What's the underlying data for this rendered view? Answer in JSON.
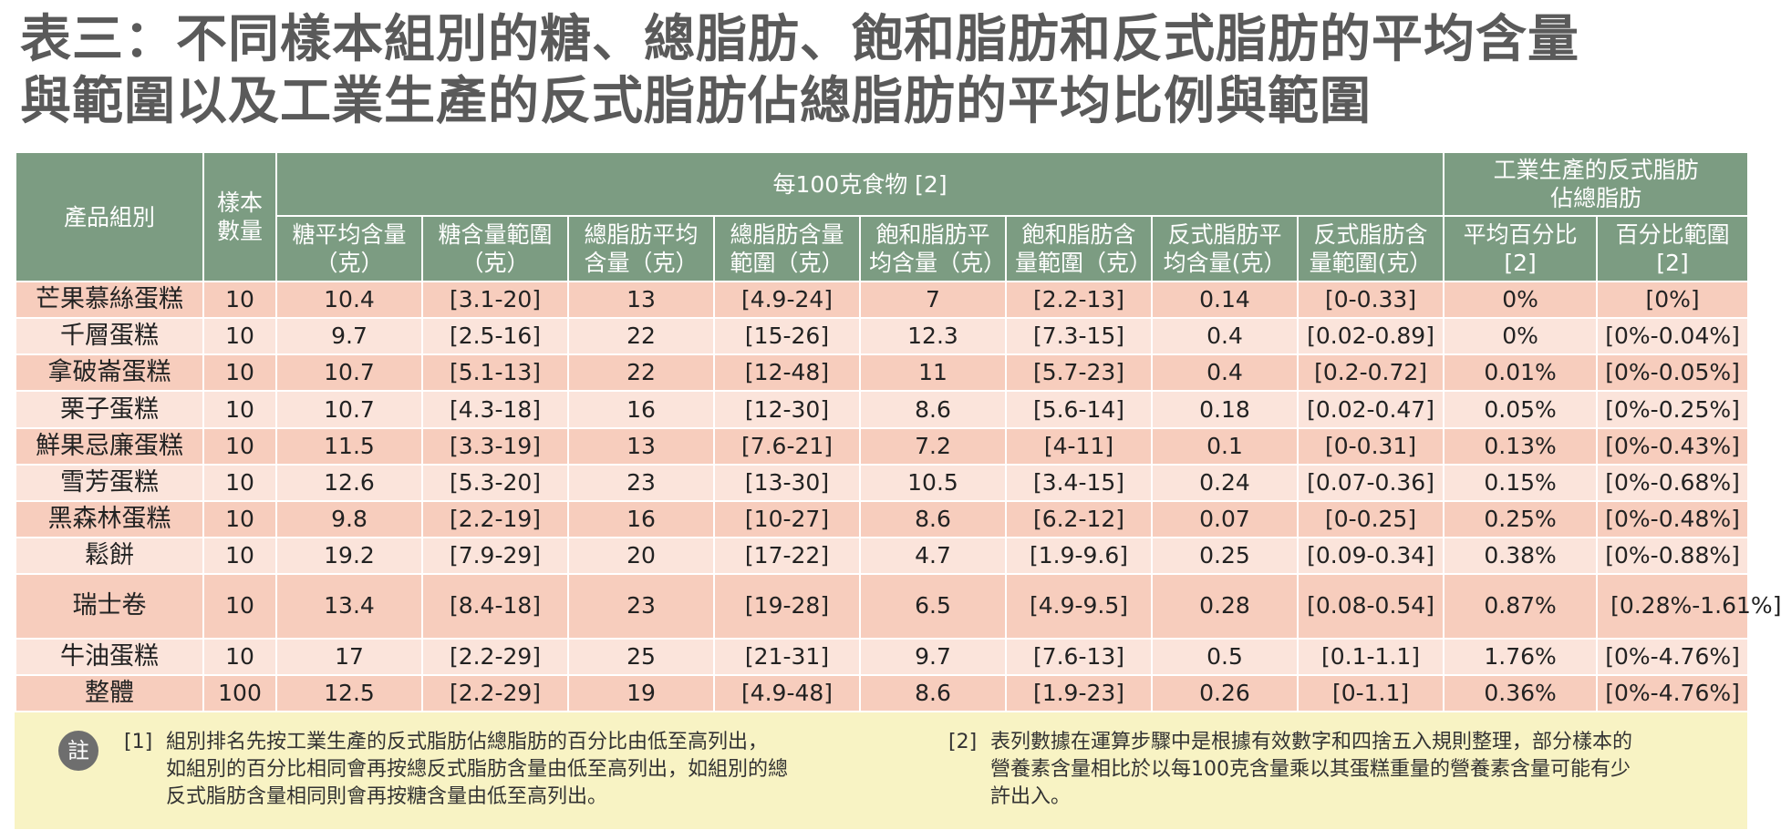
{
  "title_line1": "表三：不同樣本組別的糖、總脂肪、飽和脂肪和反式脂肪的平均含量",
  "title_line2": "與範圍以及工業生產的反式脂肪佔總脂肪的平均比例與範圍",
  "header": {
    "product_group": "產品組別",
    "sample_count": "樣本數量",
    "per100g": "每100克食物 [2]",
    "industrial": "工業生產的反式脂肪佔總脂肪",
    "columns": [
      "糖平均含量（克）",
      "糖含量範圍（克）",
      "總脂肪平均含量（克）",
      "總脂肪含量範圍（克）",
      "飽和脂肪平均含量（克）",
      "飽和脂肪含量範圍（克）",
      "反式脂肪平均含量(克）",
      "反式脂肪含量範圍(克）",
      "平均百分比[2]",
      "百分比範圍[2]"
    ]
  },
  "rows": [
    {
      "name": "芒果慕絲蛋糕",
      "n": "10",
      "sugar_avg": "10.4",
      "sugar_rng": "[3.1-20]",
      "fat_avg": "13",
      "fat_rng": "[4.9-24]",
      "sat_avg": "7",
      "sat_rng": "[2.2-13]",
      "trans_avg": "0.14",
      "trans_rng": "[0-0.33]",
      "pct_avg": "0%",
      "pct_rng": "[0%]"
    },
    {
      "name": "千層蛋糕",
      "n": "10",
      "sugar_avg": "9.7",
      "sugar_rng": "[2.5-16]",
      "fat_avg": "22",
      "fat_rng": "[15-26]",
      "sat_avg": "12.3",
      "sat_rng": "[7.3-15]",
      "trans_avg": "0.4",
      "trans_rng": "[0.02-0.89]",
      "pct_avg": "0%",
      "pct_rng": "[0%-0.04%]"
    },
    {
      "name": "拿破崙蛋糕",
      "n": "10",
      "sugar_avg": "10.7",
      "sugar_rng": "[5.1-13]",
      "fat_avg": "22",
      "fat_rng": "[12-48]",
      "sat_avg": "11",
      "sat_rng": "[5.7-23]",
      "trans_avg": "0.4",
      "trans_rng": "[0.2-0.72]",
      "pct_avg": "0.01%",
      "pct_rng": "[0%-0.05%]"
    },
    {
      "name": "栗子蛋糕",
      "n": "10",
      "sugar_avg": "10.7",
      "sugar_rng": "[4.3-18]",
      "fat_avg": "16",
      "fat_rng": "[12-30]",
      "sat_avg": "8.6",
      "sat_rng": "[5.6-14]",
      "trans_avg": "0.18",
      "trans_rng": "[0.02-0.47]",
      "pct_avg": "0.05%",
      "pct_rng": "[0%-0.25%]"
    },
    {
      "name": "鮮果忌廉蛋糕",
      "n": "10",
      "sugar_avg": "11.5",
      "sugar_rng": "[3.3-19]",
      "fat_avg": "13",
      "fat_rng": "[7.6-21]",
      "sat_avg": "7.2",
      "sat_rng": "[4-11]",
      "trans_avg": "0.1",
      "trans_rng": "[0-0.31]",
      "pct_avg": "0.13%",
      "pct_rng": "[0%-0.43%]"
    },
    {
      "name": "雪芳蛋糕",
      "n": "10",
      "sugar_avg": "12.6",
      "sugar_rng": "[5.3-20]",
      "fat_avg": "23",
      "fat_rng": "[13-30]",
      "sat_avg": "10.5",
      "sat_rng": "[3.4-15]",
      "trans_avg": "0.24",
      "trans_rng": "[0.07-0.36]",
      "pct_avg": "0.15%",
      "pct_rng": "[0%-0.68%]"
    },
    {
      "name": "黑森林蛋糕",
      "n": "10",
      "sugar_avg": "9.8",
      "sugar_rng": "[2.2-19]",
      "fat_avg": "16",
      "fat_rng": "[10-27]",
      "sat_avg": "8.6",
      "sat_rng": "[6.2-12]",
      "trans_avg": "0.07",
      "trans_rng": "[0-0.25]",
      "pct_avg": "0.25%",
      "pct_rng": "[0%-0.48%]"
    },
    {
      "name": "鬆餅",
      "n": "10",
      "sugar_avg": "19.2",
      "sugar_rng": "[7.9-29]",
      "fat_avg": "20",
      "fat_rng": "[17-22]",
      "sat_avg": "4.7",
      "sat_rng": "[1.9-9.6]",
      "trans_avg": "0.25",
      "trans_rng": "[0.09-0.34]",
      "pct_avg": "0.38%",
      "pct_rng": "[0%-0.88%]"
    },
    {
      "name": "瑞士卷",
      "n": "10",
      "sugar_avg": "13.4",
      "sugar_rng": "[8.4-18]",
      "fat_avg": "23",
      "fat_rng": "[19-28]",
      "sat_avg": "6.5",
      "sat_rng": "[4.9-9.5]",
      "trans_avg": "0.28",
      "trans_rng": "[0.08-0.54]",
      "pct_avg": "0.87%",
      "pct_rng": "[0.28%-1.61%]"
    },
    {
      "name": "牛油蛋糕",
      "n": "10",
      "sugar_avg": "17",
      "sugar_rng": "[2.2-29]",
      "fat_avg": "25",
      "fat_rng": "[21-31]",
      "sat_avg": "9.7",
      "sat_rng": "[7.6-13]",
      "trans_avg": "0.5",
      "trans_rng": "[0.1-1.1]",
      "pct_avg": "1.76%",
      "pct_rng": "[0%-4.76%]"
    },
    {
      "name": "整體",
      "n": "100",
      "sugar_avg": "12.5",
      "sugar_rng": "[2.2-29]",
      "fat_avg": "19",
      "fat_rng": "[4.9-48]",
      "sat_avg": "8.6",
      "sat_rng": "[1.9-23]",
      "trans_avg": "0.26",
      "trans_rng": "[0-1.1]",
      "pct_avg": "0.36%",
      "pct_rng": "[0%-4.76%]"
    }
  ],
  "notes": {
    "badge": "註",
    "note1_num": "[1]",
    "note1_line1": "組別排名先按工業生產的反式脂肪佔總脂肪的百分比由低至高列出，",
    "note1_line2": "如組別的百分比相同會再按總反式脂肪含量由低至高列出，如組別的總",
    "note1_line3": "反式脂肪含量相同則會再按糖含量由低至高列出。",
    "note2_num": "[2]",
    "note2_line1": "表列數據在運算步驟中是根據有效數字和四捨五入規則整理，部分樣本的",
    "note2_line2": "營養素含量相比於以每100克含量乘以其蛋糕重量的營養素含量可能有少",
    "note2_line3": "許出入。"
  },
  "colors": {
    "title": "#5a5a5a",
    "header_bg": "#7c9c82",
    "row_odd": "#f7cdbd",
    "row_even": "#fbe4db",
    "notes_bg": "#f8f3c4"
  }
}
